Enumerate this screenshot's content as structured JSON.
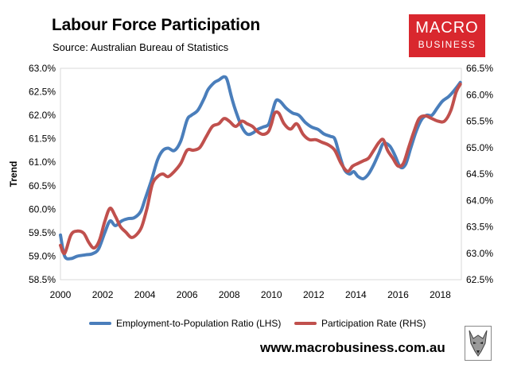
{
  "header": {
    "title": "Labour Force Participation",
    "subtitle": "Source: Australian Bureau of Statistics"
  },
  "logo": {
    "line1": "MACRO",
    "line2": "BUSINESS",
    "color": "#d9272e"
  },
  "footer": {
    "url": "www.macrobusiness.com.au",
    "icon": "wolf-mascot-icon"
  },
  "chart_data": {
    "type": "line",
    "ylabel": "Trend",
    "x_ticks": [
      "2000",
      "2002",
      "2004",
      "2006",
      "2008",
      "2010",
      "2012",
      "2014",
      "2016",
      "2018"
    ],
    "x_range": [
      2000,
      2019
    ],
    "y_left_ticks": [
      "63.0%",
      "62.5%",
      "62.0%",
      "61.5%",
      "61.0%",
      "60.5%",
      "60.0%",
      "59.5%",
      "59.0%",
      "58.5%"
    ],
    "y_left_range": [
      58.5,
      63.0
    ],
    "y_right_ticks": [
      "66.5%",
      "66.0%",
      "65.5%",
      "65.0%",
      "64.5%",
      "64.0%",
      "63.5%",
      "63.0%",
      "62.5%"
    ],
    "y_right_range": [
      62.5,
      66.5
    ],
    "grid": "none",
    "legend_position": "bottom",
    "series": [
      {
        "name": "Employment-to-Population Ratio (LHS)",
        "axis": "left",
        "color": "#4a7ebb",
        "x": [
          2000.0,
          2000.2,
          2000.5,
          2000.8,
          2001.2,
          2001.5,
          2001.8,
          2002.1,
          2002.35,
          2002.6,
          2002.9,
          2003.2,
          2003.5,
          2003.8,
          2004.0,
          2004.3,
          2004.6,
          2004.85,
          2005.1,
          2005.4,
          2005.7,
          2006.0,
          2006.2,
          2006.5,
          2006.8,
          2007.0,
          2007.3,
          2007.5,
          2007.75,
          2007.9,
          2008.1,
          2008.3,
          2008.6,
          2008.85,
          2009.1,
          2009.35,
          2009.6,
          2009.85,
          2010.0,
          2010.2,
          2010.4,
          2010.7,
          2011.0,
          2011.3,
          2011.6,
          2011.9,
          2012.2,
          2012.5,
          2012.8,
          2013.0,
          2013.2,
          2013.45,
          2013.7,
          2013.9,
          2014.1,
          2014.35,
          2014.6,
          2014.85,
          2015.1,
          2015.3,
          2015.6,
          2015.85,
          2016.1,
          2016.35,
          2016.6,
          2016.85,
          2017.1,
          2017.35,
          2017.6,
          2017.85,
          2018.1,
          2018.4,
          2018.7,
          2018.95
        ],
        "y": [
          59.45,
          59.0,
          58.95,
          59.0,
          59.03,
          59.05,
          59.15,
          59.5,
          59.75,
          59.65,
          59.75,
          59.8,
          59.82,
          59.95,
          60.2,
          60.6,
          61.05,
          61.25,
          61.3,
          61.25,
          61.45,
          61.9,
          62.0,
          62.1,
          62.35,
          62.55,
          62.7,
          62.75,
          62.82,
          62.75,
          62.4,
          62.1,
          61.75,
          61.6,
          61.62,
          61.7,
          61.75,
          61.8,
          62.0,
          62.3,
          62.3,
          62.15,
          62.05,
          62.0,
          61.85,
          61.75,
          61.7,
          61.6,
          61.55,
          61.5,
          61.2,
          60.85,
          60.75,
          60.8,
          60.7,
          60.65,
          60.75,
          60.95,
          61.2,
          61.4,
          61.35,
          61.15,
          60.9,
          60.95,
          61.3,
          61.65,
          61.9,
          62.0,
          62.0,
          62.15,
          62.3,
          62.4,
          62.55,
          62.7
        ]
      },
      {
        "name": "Participation Rate (RHS)",
        "axis": "right",
        "color": "#c0504d",
        "x": [
          2000.0,
          2000.2,
          2000.5,
          2000.8,
          2001.1,
          2001.35,
          2001.6,
          2001.85,
          2002.1,
          2002.35,
          2002.6,
          2002.85,
          2003.1,
          2003.35,
          2003.6,
          2003.85,
          2004.1,
          2004.35,
          2004.6,
          2004.85,
          2005.1,
          2005.4,
          2005.7,
          2006.0,
          2006.3,
          2006.6,
          2006.9,
          2007.2,
          2007.5,
          2007.75,
          2008.0,
          2008.3,
          2008.6,
          2008.85,
          2009.1,
          2009.35,
          2009.6,
          2009.85,
          2010.0,
          2010.15,
          2010.35,
          2010.6,
          2010.9,
          2011.2,
          2011.5,
          2011.8,
          2012.1,
          2012.4,
          2012.7,
          2013.0,
          2013.3,
          2013.6,
          2013.85,
          2014.1,
          2014.35,
          2014.6,
          2014.85,
          2015.1,
          2015.3,
          2015.5,
          2015.75,
          2016.0,
          2016.25,
          2016.5,
          2016.75,
          2017.0,
          2017.3,
          2017.6,
          2017.9,
          2018.2,
          2018.5,
          2018.75,
          2018.95
        ],
        "y": [
          63.15,
          63.0,
          63.35,
          63.42,
          63.38,
          63.2,
          63.1,
          63.25,
          63.6,
          63.85,
          63.7,
          63.5,
          63.4,
          63.3,
          63.35,
          63.5,
          63.85,
          64.3,
          64.45,
          64.5,
          64.45,
          64.55,
          64.7,
          64.95,
          64.95,
          65.0,
          65.2,
          65.4,
          65.45,
          65.55,
          65.5,
          65.4,
          65.5,
          65.45,
          65.4,
          65.3,
          65.25,
          65.3,
          65.45,
          65.65,
          65.65,
          65.45,
          65.35,
          65.45,
          65.25,
          65.15,
          65.15,
          65.1,
          65.05,
          64.95,
          64.7,
          64.55,
          64.65,
          64.7,
          64.75,
          64.8,
          64.95,
          65.1,
          65.15,
          64.95,
          64.8,
          64.65,
          64.7,
          65.0,
          65.3,
          65.55,
          65.6,
          65.55,
          65.5,
          65.5,
          65.7,
          66.05,
          66.2
        ]
      }
    ]
  }
}
